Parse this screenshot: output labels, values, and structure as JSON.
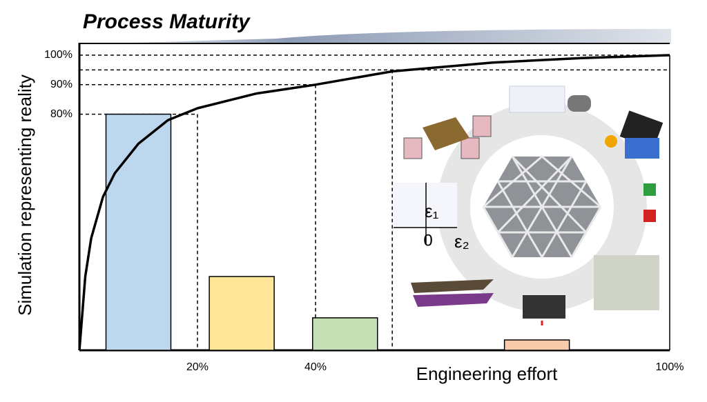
{
  "chart_data": {
    "type": "bar",
    "title": "Process Maturity",
    "y_label": "Simulation representing reality",
    "x_label": "Engineering effort",
    "xlim": [
      0,
      100
    ],
    "ylim": [
      0,
      100
    ],
    "xticks": [
      {
        "value": 20,
        "label": "20%"
      },
      {
        "value": 40,
        "label": "40%"
      },
      {
        "value": 100,
        "label": "100%"
      }
    ],
    "yticks": [
      {
        "value": 80,
        "label": "80%"
      },
      {
        "value": 90,
        "label": "90%"
      },
      {
        "value": 100,
        "label": "100%"
      }
    ],
    "x": [
      10,
      27.5,
      45,
      77.5
    ],
    "values": [
      80,
      25,
      11,
      3.5
    ],
    "colors": [
      "#bdd7ee",
      "#ffe699",
      "#c5e0b4",
      "#f8cbad"
    ],
    "guides": [
      [
        20,
        80
      ],
      [
        40,
        90
      ],
      [
        53,
        95
      ]
    ],
    "curve": {
      "x": [
        0,
        1,
        2,
        4,
        6,
        10,
        15,
        20,
        30,
        40,
        53,
        70,
        85,
        100
      ],
      "y": [
        0,
        25,
        38,
        52,
        60,
        70,
        78,
        82,
        87,
        90,
        94.5,
        97.5,
        99,
        100
      ],
      "color": "#000000"
    },
    "annotations": [
      "ε₁",
      "0",
      "ε₂"
    ]
  }
}
